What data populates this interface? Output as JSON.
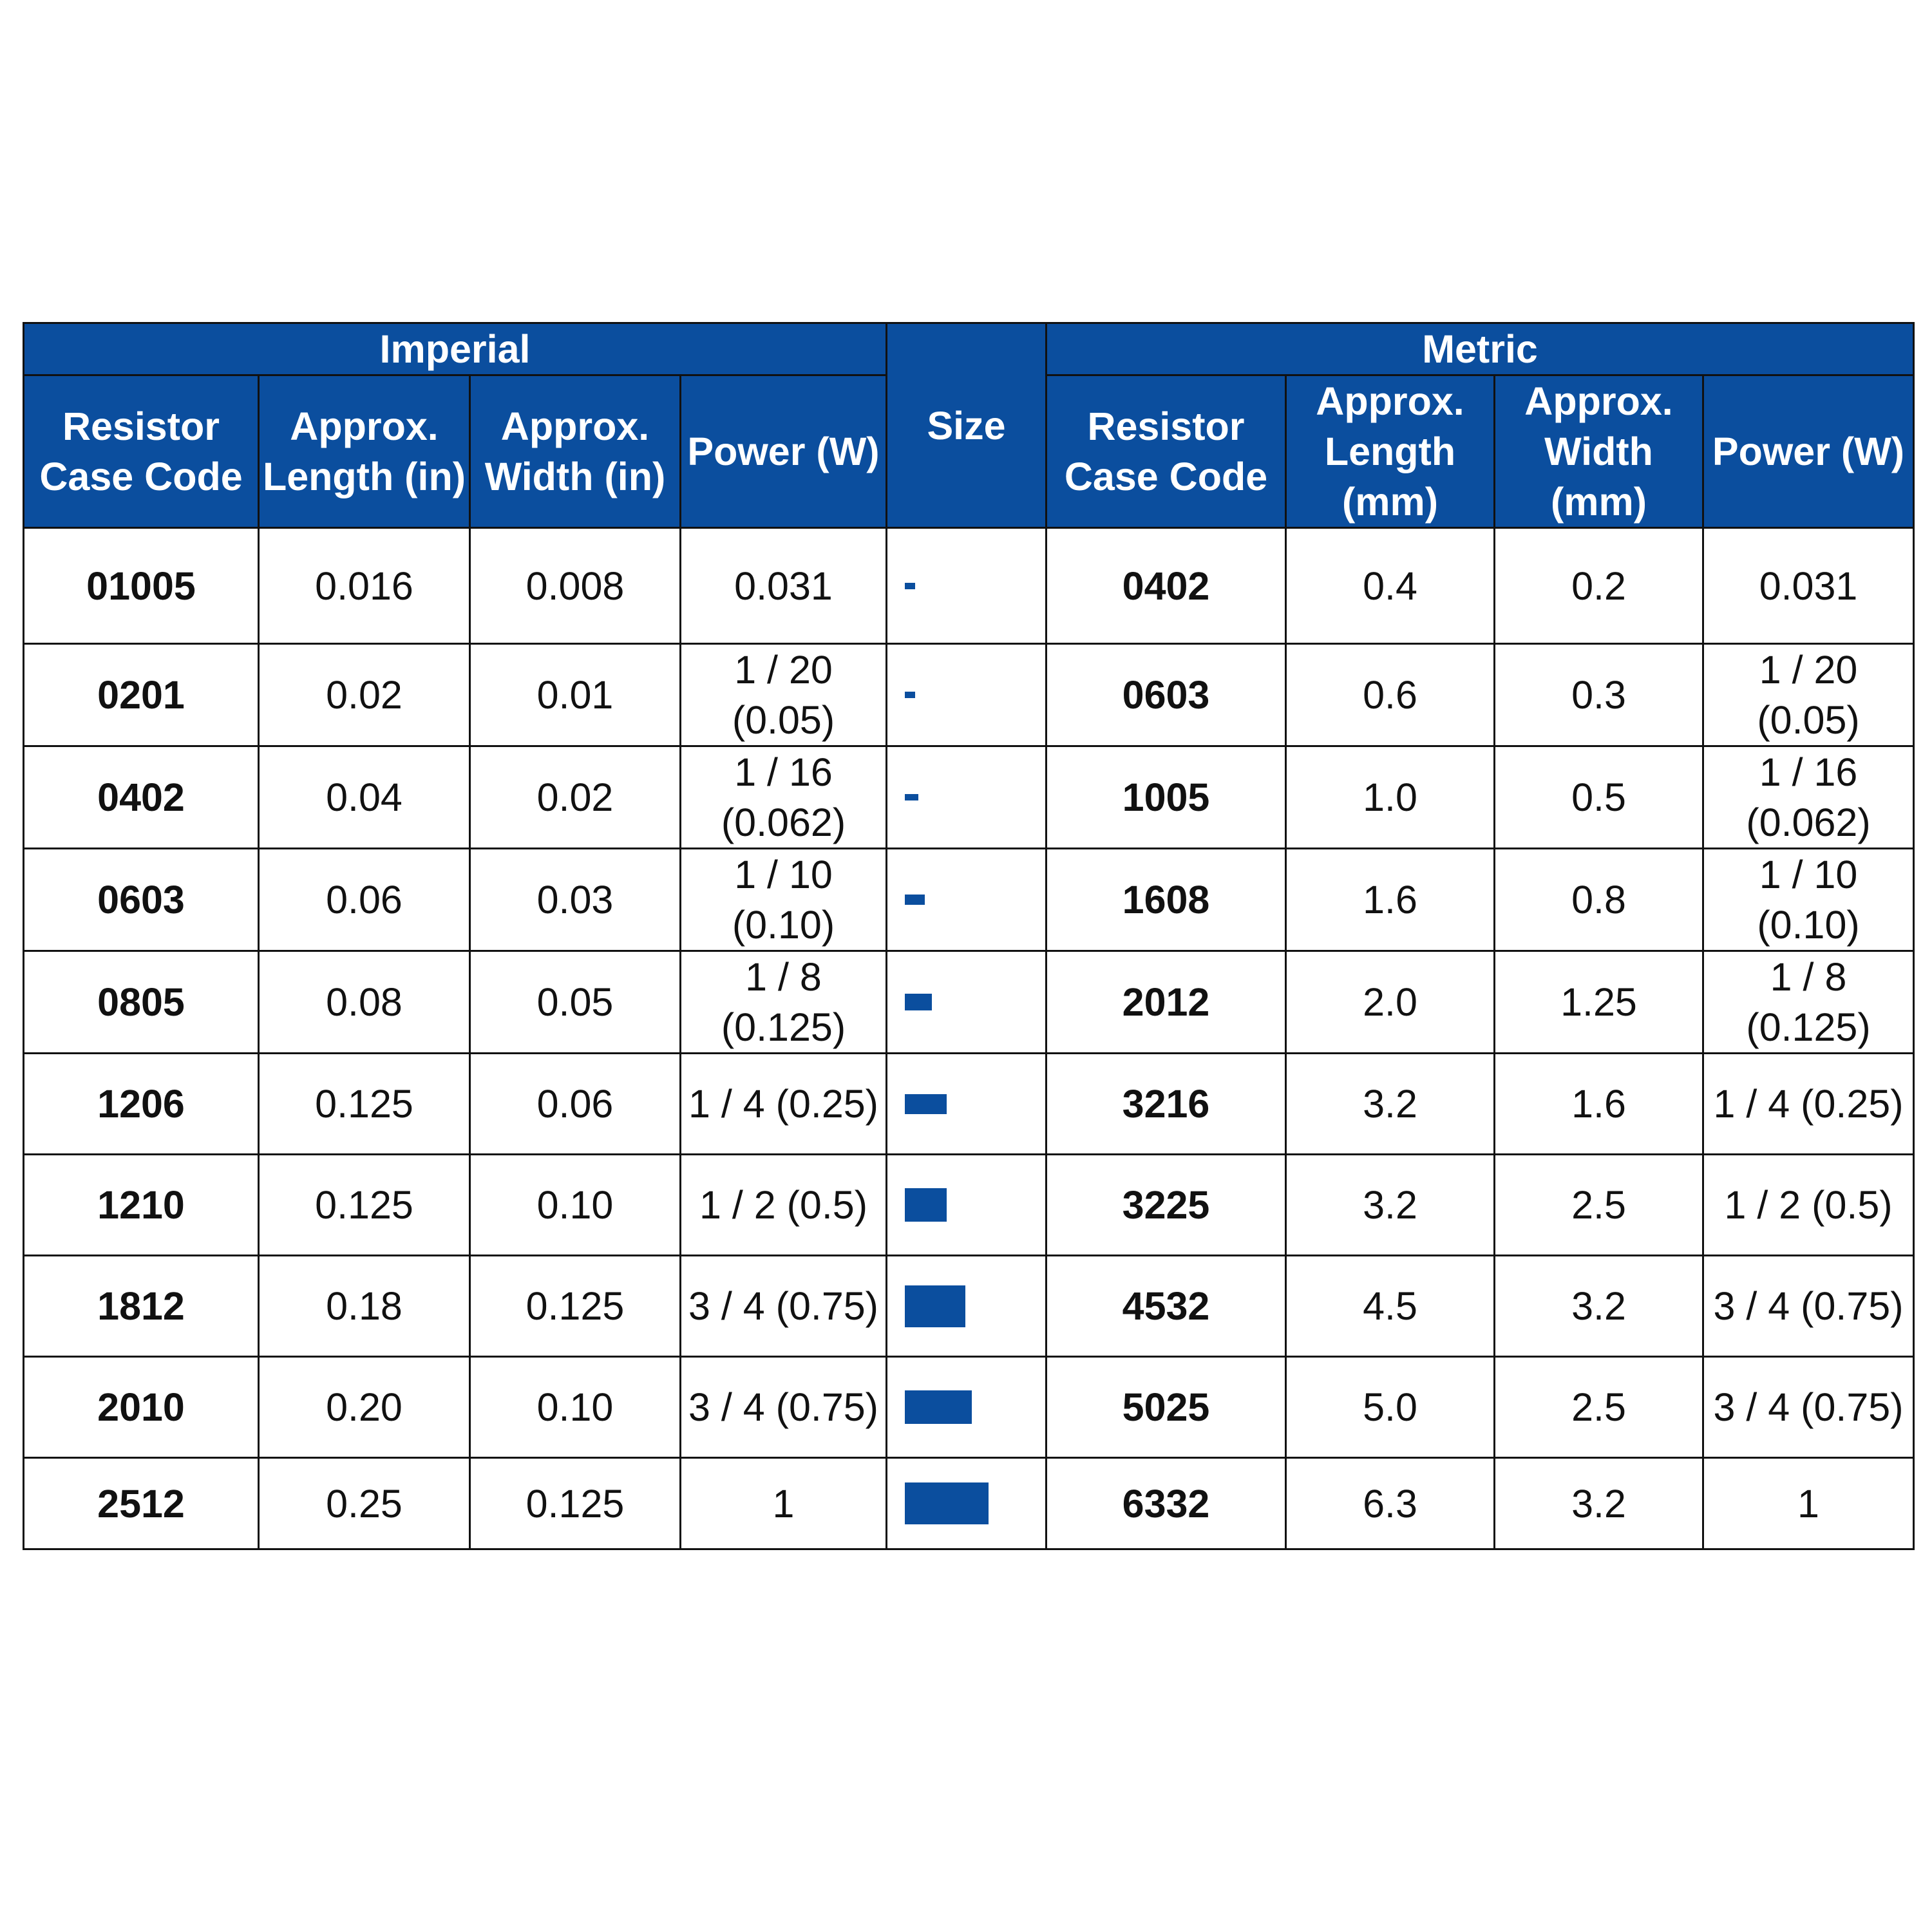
{
  "colors": {
    "header_bg": "#0b4e9e",
    "header_text": "#ffffff",
    "border": "#111111",
    "size_box": "#0b4e9e"
  },
  "headers": {
    "imperial": "Imperial",
    "size": "Size",
    "metric": "Metric",
    "imperial_columns": [
      "Resistor Case Code",
      "Approx. Length (in)",
      "Approx. Width (in)",
      "Power (W)"
    ],
    "metric_columns": [
      "Resistor Case Code",
      "Approx. Length (mm)",
      "Approx. Width (mm)",
      "Power (W)"
    ]
  },
  "rows": [
    {
      "imp_code": "01005",
      "imp_length": "0.016",
      "imp_width": "0.008",
      "imp_power": "0.031",
      "size_w": 0.016,
      "size_h": 0.008,
      "met_code": "0402",
      "met_length": "0.4",
      "met_width": "0.2",
      "met_power": "0.031"
    },
    {
      "imp_code": "0201",
      "imp_length": "0.02",
      "imp_width": "0.01",
      "imp_power": "1 / 20 (0.05)",
      "size_w": 0.02,
      "size_h": 0.01,
      "met_code": "0603",
      "met_length": "0.6",
      "met_width": "0.3",
      "met_power": "1 / 20 (0.05)"
    },
    {
      "imp_code": "0402",
      "imp_length": "0.04",
      "imp_width": "0.02",
      "imp_power": "1 / 16 (0.062)",
      "size_w": 0.04,
      "size_h": 0.02,
      "met_code": "1005",
      "met_length": "1.0",
      "met_width": "0.5",
      "met_power": "1 / 16 (0.062)"
    },
    {
      "imp_code": "0603",
      "imp_length": "0.06",
      "imp_width": "0.03",
      "imp_power": "1 / 10 (0.10)",
      "size_w": 0.06,
      "size_h": 0.03,
      "met_code": "1608",
      "met_length": "1.6",
      "met_width": "0.8",
      "met_power": "1 / 10 (0.10)"
    },
    {
      "imp_code": "0805",
      "imp_length": "0.08",
      "imp_width": "0.05",
      "imp_power": "1 / 8 (0.125)",
      "size_w": 0.08,
      "size_h": 0.05,
      "met_code": "2012",
      "met_length": "2.0",
      "met_width": "1.25",
      "met_power": "1 / 8 (0.125)"
    },
    {
      "imp_code": "1206",
      "imp_length": "0.125",
      "imp_width": "0.06",
      "imp_power": "1 / 4 (0.25)",
      "size_w": 0.125,
      "size_h": 0.06,
      "met_code": "3216",
      "met_length": "3.2",
      "met_width": "1.6",
      "met_power": "1 / 4 (0.25)"
    },
    {
      "imp_code": "1210",
      "imp_length": "0.125",
      "imp_width": "0.10",
      "imp_power": "1 / 2 (0.5)",
      "size_w": 0.125,
      "size_h": 0.1,
      "met_code": "3225",
      "met_length": "3.2",
      "met_width": "2.5",
      "met_power": "1 / 2 (0.5)"
    },
    {
      "imp_code": "1812",
      "imp_length": "0.18",
      "imp_width": "0.125",
      "imp_power": "3 / 4 (0.75)",
      "size_w": 0.18,
      "size_h": 0.125,
      "met_code": "4532",
      "met_length": "4.5",
      "met_width": "3.2",
      "met_power": "3 / 4 (0.75)"
    },
    {
      "imp_code": "2010",
      "imp_length": "0.20",
      "imp_width": "0.10",
      "imp_power": "3 / 4 (0.75)",
      "size_w": 0.2,
      "size_h": 0.1,
      "met_code": "5025",
      "met_length": "5.0",
      "met_width": "2.5",
      "met_power": "3 / 4 (0.75)"
    },
    {
      "imp_code": "2512",
      "imp_length": "0.25",
      "imp_width": "0.125",
      "imp_power": "1",
      "size_w": 0.25,
      "size_h": 0.125,
      "met_code": "6332",
      "met_length": "6.3",
      "met_width": "3.2",
      "met_power": "1"
    }
  ]
}
